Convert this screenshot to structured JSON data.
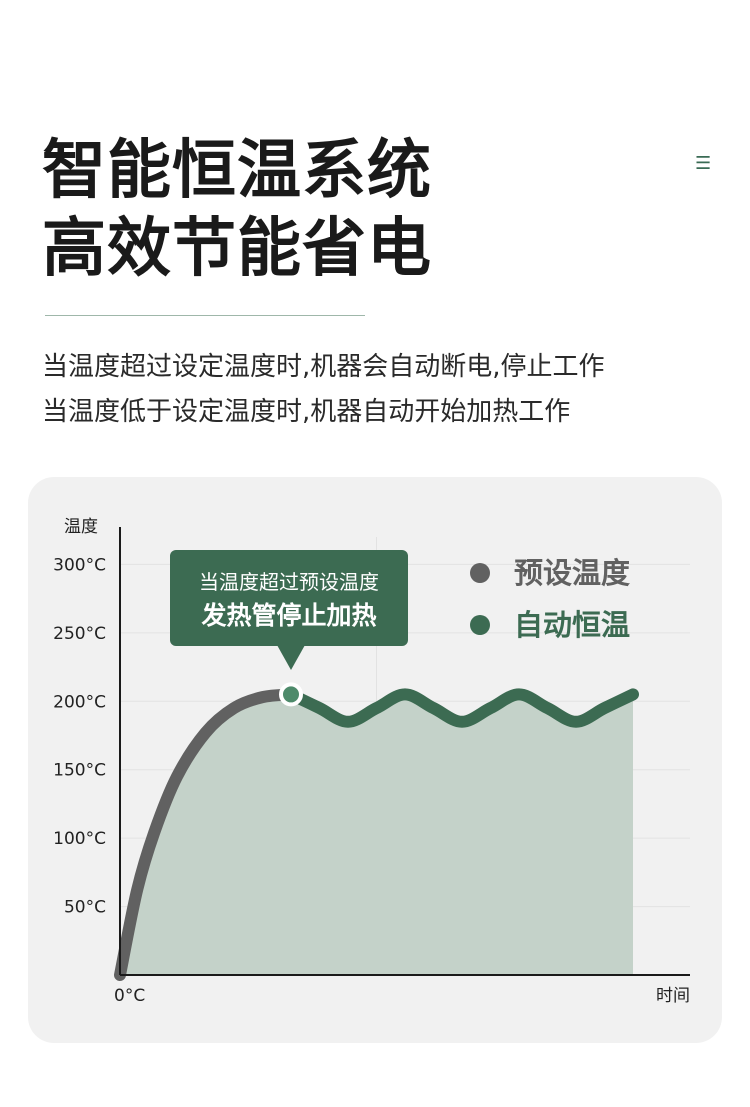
{
  "header": {
    "title_line1": "智能恒温系统",
    "title_line2": "高效节能省电",
    "menu_icon": "menu-icon"
  },
  "description": {
    "line1": "当温度超过设定温度时,机器会自动断电,停止工作",
    "line2": "当温度低于设定温度时,机器自动开始加热工作"
  },
  "chart_data": {
    "type": "area",
    "ylabel": "温度",
    "xlabel": "时间",
    "origin_label": "0°C",
    "y_ticks": [
      "50°C",
      "100°C",
      "150°C",
      "200°C",
      "250°C",
      "300°C"
    ],
    "ylim": [
      0,
      320
    ],
    "callout": {
      "line1": "当温度超过预设温度",
      "line2": "发热管停止加热",
      "anchor": {
        "x": 30,
        "y": 205
      }
    },
    "legend": [
      {
        "label": "预设温度",
        "color": "#616161"
      },
      {
        "label": "自动恒温",
        "color": "#3c6b52"
      }
    ],
    "series": [
      {
        "name": "预设温度",
        "color": "#616161",
        "x": [
          0,
          3,
          6,
          10,
          15,
          20,
          25,
          30
        ],
        "values": [
          0,
          62,
          104,
          145,
          177,
          195,
          203,
          205
        ]
      },
      {
        "name": "自动恒温",
        "color": "#3c6b52",
        "x": [
          30,
          35,
          40,
          45,
          50,
          55,
          60,
          65,
          70,
          75,
          80,
          85,
          90
        ],
        "values": [
          205,
          195,
          185,
          195,
          205,
          195,
          185,
          195,
          205,
          195,
          185,
          195,
          205
        ]
      }
    ],
    "xlim": [
      0,
      100
    ],
    "fill_color": "#c4d2c9",
    "grid": true
  }
}
